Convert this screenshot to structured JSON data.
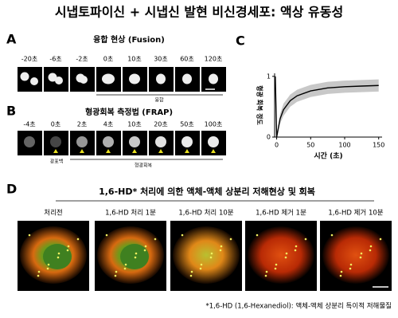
{
  "title": "시냅토파이신 + 시냅신 발현 비신경세포: 액상 유동성",
  "panel_a": {
    "label": "A",
    "title": "융합 현상 (Fusion)",
    "times": [
      "-20초",
      "-6초",
      "-2초",
      "0초",
      "10초",
      "30초",
      "60초",
      "120초"
    ],
    "bracket": "융합"
  },
  "panel_b": {
    "label": "B",
    "title": "형광회복 측정법 (FRAP)",
    "times": [
      "-4초",
      "0초",
      "2초",
      "4초",
      "10초",
      "20초",
      "50초",
      "100초"
    ],
    "bleach": "광표백",
    "recovery": "형광회복"
  },
  "panel_c": {
    "label": "C"
  },
  "chart_data": {
    "type": "line",
    "xlabel": "시간 (초)",
    "ylabel": "형광 회복 정도",
    "x": [
      -2,
      0,
      5,
      10,
      20,
      30,
      50,
      75,
      100,
      125,
      150
    ],
    "series": [
      {
        "color": "#000000",
        "values": [
          1,
          0,
          0.3,
          0.45,
          0.6,
          0.68,
          0.76,
          0.81,
          0.83,
          0.84,
          0.85
        ],
        "lower": [
          1,
          0,
          0.22,
          0.35,
          0.5,
          0.58,
          0.66,
          0.71,
          0.73,
          0.74,
          0.75
        ],
        "upper": [
          1,
          0,
          0.38,
          0.55,
          0.7,
          0.78,
          0.86,
          0.91,
          0.93,
          0.94,
          0.95
        ],
        "band_color": "#c8c8c8"
      }
    ],
    "xlim": [
      -3,
      155
    ],
    "ylim": [
      0,
      1.05
    ],
    "xticks": [
      0,
      50,
      100,
      150
    ],
    "yticks": [
      0,
      1
    ]
  },
  "panel_d": {
    "label": "D",
    "title": "1,6-HD* 처리에 의한 액체-액체 상분리 저해현상 및 회복",
    "captions": [
      "처리전",
      "1,6-HD 처리 1분",
      "1,6-HD 처리 10분",
      "1,6-HD 제거 1분",
      "1,6-HD 제거 10분"
    ],
    "footnote": "*1,6-HD (1,6-Hexanediol): 액체-액체 상분리 특이적 저해물질"
  }
}
